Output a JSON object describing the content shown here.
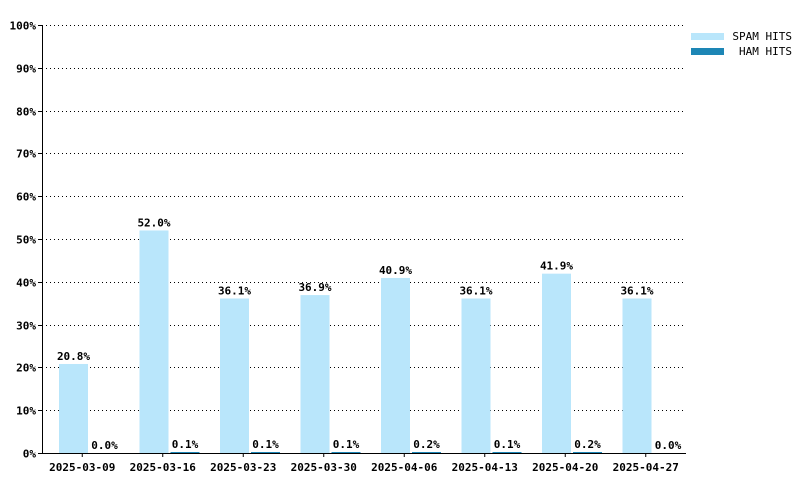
{
  "colors": {
    "spam": "#b9e6fb",
    "ham": "#1d86b5",
    "grid": "#000000",
    "axis": "#000000"
  },
  "chart_data": {
    "type": "bar",
    "categories": [
      "2025-03-09",
      "2025-03-16",
      "2025-03-23",
      "2025-03-30",
      "2025-04-06",
      "2025-04-13",
      "2025-04-20",
      "2025-04-27"
    ],
    "series": [
      {
        "name": "SPAM HITS",
        "values": [
          20.8,
          52.0,
          36.1,
          36.9,
          40.9,
          36.1,
          41.9,
          36.1
        ],
        "labels": [
          "20.8%",
          "52.0%",
          "36.1%",
          "36.9%",
          "40.9%",
          "36.1%",
          "41.9%",
          "36.1%"
        ]
      },
      {
        "name": "HAM HITS",
        "values": [
          0.0,
          0.1,
          0.1,
          0.1,
          0.2,
          0.1,
          0.2,
          0.0
        ],
        "labels": [
          "0.0%",
          "0.1%",
          "0.1%",
          "0.1%",
          "0.2%",
          "0.1%",
          "0.2%",
          "0.0%"
        ]
      }
    ],
    "ylim": [
      0,
      100
    ],
    "yticks": [
      0,
      10,
      20,
      30,
      40,
      50,
      60,
      70,
      80,
      90,
      100
    ],
    "ytick_labels": [
      "0%",
      "10%",
      "20%",
      "30%",
      "40%",
      "50%",
      "60%",
      "70%",
      "80%",
      "90%",
      "100%"
    ],
    "grid": true,
    "legend_position": "top-right"
  }
}
